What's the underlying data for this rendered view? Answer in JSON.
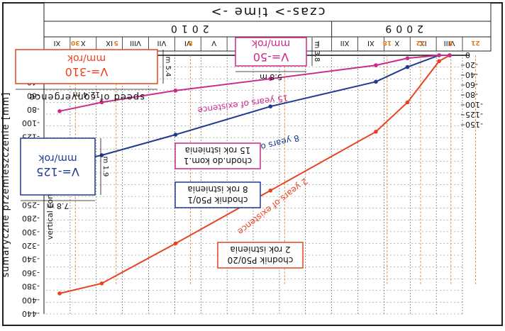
{
  "chart_data": {
    "type": "line",
    "orientation": "rotated-180",
    "x_axis": {
      "title": "czas-> time ->",
      "years": [
        "2009",
        "2010"
      ],
      "months": [
        "VIII",
        "IX",
        "X",
        "XI",
        "XII",
        "I",
        "II",
        "III",
        "IV",
        "V",
        "VI",
        "VII",
        "VIII",
        "IX",
        "X",
        "XI"
      ],
      "day_marks": [
        "21",
        "3",
        "22",
        "18",
        "8",
        "8",
        "5",
        "30"
      ]
    },
    "y_axis_left": {
      "ticks": [
        "0",
        "-20",
        "-40",
        "-60",
        "-80",
        "-100",
        "-125",
        "-150"
      ]
    },
    "y_axis_right": {
      "title": "sumaryczne przemieszczenie [mm]",
      "subtitle": "vertical convergence",
      "ticks": [
        "0",
        "-20",
        "-40",
        "-60",
        "-80",
        "-100",
        "-125",
        "-160",
        "-180",
        "-200",
        "-220",
        "-250",
        "-280",
        "-300",
        "-320",
        "-340",
        "-360",
        "-380",
        "-400",
        "-440"
      ]
    },
    "series": [
      {
        "name": "chodnik P50/20",
        "label_lines": [
          "chodnik P50/20",
          "2 rok istnienia"
        ],
        "curve_label": "2 years of existence",
        "color": "#e8431e",
        "points": [
          [
            0,
            0
          ],
          [
            0.5,
            -10
          ],
          [
            2,
            -80
          ],
          [
            3.5,
            -130
          ],
          [
            8.5,
            -230
          ],
          [
            13,
            -320
          ],
          [
            16.5,
            -388
          ],
          [
            18.5,
            -405
          ]
        ]
      },
      {
        "name": "chodnik P50/1",
        "label_lines": [
          "chodnik P50/1",
          "8 rok istnienia"
        ],
        "curve_label": "8 years of existence",
        "color": "#1f3a8f",
        "points": [
          [
            0,
            0
          ],
          [
            0.5,
            0
          ],
          [
            2,
            -20
          ],
          [
            3.5,
            -45
          ],
          [
            8.5,
            -87
          ],
          [
            13,
            -135
          ],
          [
            16.5,
            -170
          ],
          [
            18.5,
            -185
          ]
        ]
      },
      {
        "name": "chodn.do kom.1",
        "label_lines": [
          "chodn.do kom.1",
          "15 rok istnienia"
        ],
        "curve_label": "15 years of existence",
        "color": "#cc2a8a",
        "points": [
          [
            0,
            0
          ],
          [
            0.5,
            0
          ],
          [
            2,
            -5
          ],
          [
            3.5,
            -17
          ],
          [
            8.5,
            -40
          ],
          [
            13,
            -60
          ],
          [
            16.5,
            -80
          ],
          [
            18.5,
            -95
          ]
        ]
      }
    ],
    "speed_boxes": [
      {
        "speed": "V=-310",
        "unit": "mm/rok",
        "width_label": "12.4 m",
        "height_label": "m 5.4",
        "color": "#e8431e"
      },
      {
        "speed": "V=-50",
        "unit": "mm/rok",
        "width_label": "5.8 m",
        "height_label": "m 3.8",
        "color": "#cc2a8a"
      },
      {
        "speed": "V=-125",
        "unit": "mm/rok",
        "width_label": "7.8 m",
        "height_label": "m 1.9",
        "color": "#1f3a8f"
      }
    ],
    "speed_caption": "speed of convergence"
  }
}
